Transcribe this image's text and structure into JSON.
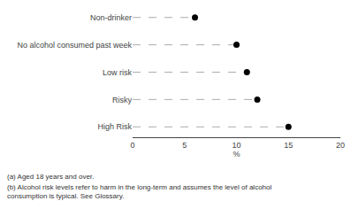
{
  "chart_data": {
    "type": "dot",
    "categories": [
      "Non-drinker",
      "No alcohol consumed past week",
      "Low risk",
      "Risky",
      "High Risk"
    ],
    "values": [
      6.0,
      10.0,
      11.0,
      12.0,
      15.0
    ],
    "xlim": [
      0,
      20
    ],
    "xticks": [
      0,
      5,
      10,
      15,
      20
    ],
    "xlabel": "%",
    "color": "#000000",
    "marker": "circle",
    "line_style": "dashed",
    "grid": false,
    "annotations": [
      "(a) Aged 18 years and over.",
      "(b) Alcohol risk levels refer to harm in the long-term and assumes the level of alcohol\nconsumption is typical. See Glossary."
    ]
  }
}
